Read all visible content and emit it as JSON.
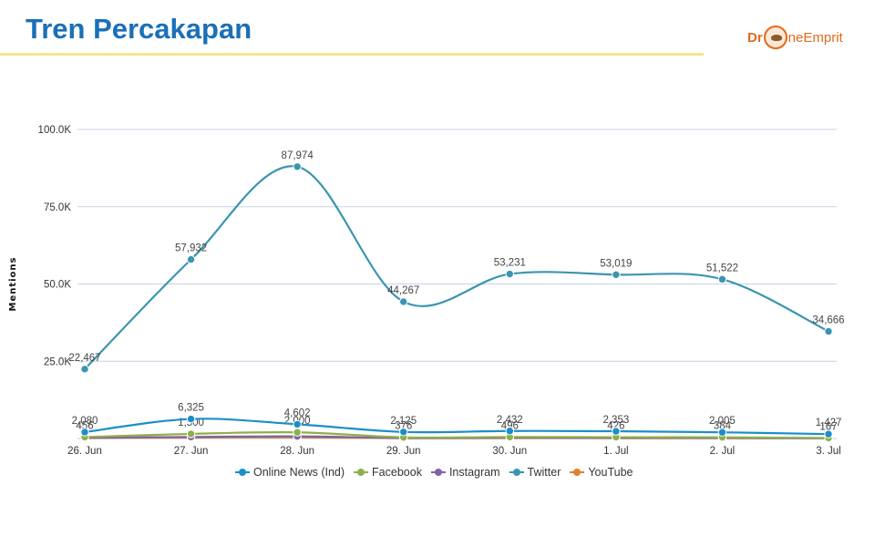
{
  "header": {
    "title": "Tren Percakapan",
    "logo": {
      "prefix": "Dr",
      "suffix": "neEmprit"
    }
  },
  "colors": {
    "title": "#1a6fb8",
    "rule": "#f5e48a",
    "logo": "#e26a1b",
    "grid": "#c8d4e6"
  },
  "chart_data": {
    "type": "line",
    "title": "",
    "xlabel": "",
    "ylabel": "Mentions",
    "categories": [
      "26. Jun",
      "27. Jun",
      "28. Jun",
      "29. Jun",
      "30. Jun",
      "1. Jul",
      "2. Jul",
      "3. Jul"
    ],
    "ylim": [
      0,
      100000
    ],
    "yticks": [
      {
        "value": 25000,
        "label": "25.0K"
      },
      {
        "value": 50000,
        "label": "50.0K"
      },
      {
        "value": 75000,
        "label": "75.0K"
      },
      {
        "value": 100000,
        "label": "100.0K"
      }
    ],
    "grid": true,
    "legend_position": "bottom",
    "series": [
      {
        "name": "Online News (Ind)",
        "color": "#1b8ec9",
        "values": [
          2080,
          6325,
          4602,
          2125,
          2432,
          2353,
          2005,
          1427
        ],
        "labels": [
          "2,080",
          "6,325",
          "4,602",
          "2,125",
          "2,432",
          "2,353",
          "2,005",
          "1,427"
        ]
      },
      {
        "name": "Facebook",
        "color": "#8db04a",
        "values": [
          456,
          1500,
          2000,
          376,
          496,
          426,
          384,
          167
        ],
        "labels": [
          "456",
          "1,500",
          "2,000",
          "376",
          "496",
          "426",
          "384",
          "167"
        ]
      },
      {
        "name": "Instagram",
        "color": "#7f63a3",
        "values": [
          200,
          500,
          700,
          150,
          250,
          200,
          180,
          100
        ],
        "labels": []
      },
      {
        "name": "Twitter",
        "color": "#3a95b0",
        "values": [
          22467,
          57932,
          87974,
          44267,
          53231,
          53019,
          51522,
          34666
        ],
        "labels": [
          "22,467",
          "57,932",
          "87,974",
          "44,267",
          "53,231",
          "53,019",
          "51,522",
          "34,666"
        ]
      },
      {
        "name": "YouTube",
        "color": "#e0812b",
        "values": [
          150,
          300,
          400,
          100,
          150,
          120,
          110,
          80
        ],
        "labels": []
      }
    ]
  }
}
